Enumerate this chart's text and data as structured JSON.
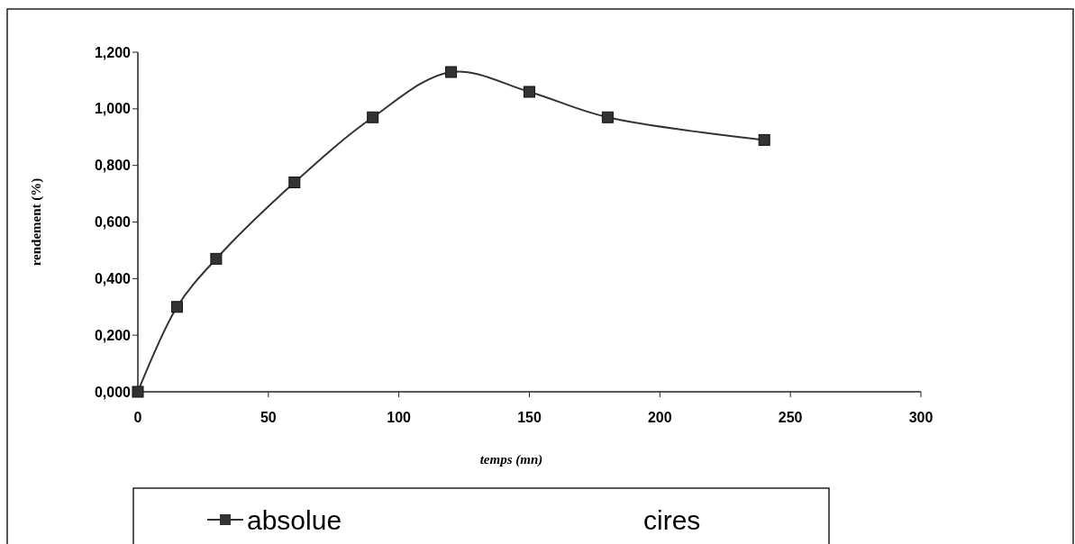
{
  "chart_data": {
    "type": "line",
    "xlabel": "temps (mn)",
    "ylabel": "rendement (%)",
    "x": [
      0,
      15,
      30,
      60,
      90,
      120,
      150,
      180,
      240
    ],
    "series": [
      {
        "name": "absolue",
        "color": "#333333",
        "values": [
          0,
          0.3,
          0.47,
          0.74,
          0.97,
          1.13,
          1.06,
          0.97,
          0.89
        ]
      },
      {
        "name": "cires",
        "values": [
          null,
          null,
          null,
          null,
          null,
          null,
          null,
          null,
          null
        ]
      }
    ],
    "xlim": [
      0,
      300
    ],
    "xticks": [
      0,
      50,
      100,
      150,
      200,
      250,
      300
    ],
    "ylim": [
      0,
      1.2
    ],
    "yticks": [
      {
        "value": 0,
        "label": "0,000"
      },
      {
        "value": 0.2,
        "label": "0,200"
      },
      {
        "value": 0.4,
        "label": "0,400"
      },
      {
        "value": 0.6,
        "label": "0,600"
      },
      {
        "value": 0.8,
        "label": "0,800"
      },
      {
        "value": 1,
        "label": "1,000"
      },
      {
        "value": 1.2,
        "label": "1,200"
      }
    ],
    "marker": "square",
    "line_style": "solid",
    "grid": false,
    "legend": "bottom"
  }
}
